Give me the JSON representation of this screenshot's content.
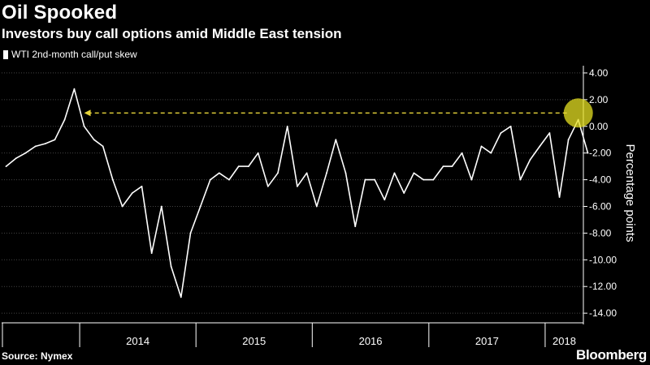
{
  "header": {
    "title": "Oil Spooked",
    "subtitle": "Investors buy call options amid Middle East tension"
  },
  "legend": {
    "label": "WTI 2nd-month call/put skew"
  },
  "footer": {
    "source": "Source: Nymex",
    "brand": "Bloomberg"
  },
  "colors": {
    "background": "#000000",
    "line": "#ffffff",
    "grid": "#444444",
    "highlight": "#e6e021",
    "arrow": "#e6d43a"
  },
  "chart_data": {
    "type": "line",
    "title": "Oil Spooked",
    "subtitle": "Investors buy call options amid Middle East tension",
    "xlabel": "",
    "ylabel": "Percentage points",
    "ylim": [
      -14.6,
      4.3
    ],
    "yticks": [
      4,
      2,
      0,
      -2,
      -4,
      -6,
      -8,
      -10,
      -12,
      -14
    ],
    "ytick_labels": [
      "4.00",
      "2.00",
      "0.00",
      "-2.00",
      "-4.00",
      "-6.00",
      "-8.00",
      "-10.00",
      "-12.00",
      "-14.00"
    ],
    "xlim": [
      "2013-05-01",
      "2018-05-01"
    ],
    "xticks": [
      "2014",
      "2015",
      "2016",
      "2017",
      "2018"
    ],
    "grid": true,
    "legend_position": "top-left",
    "series": [
      {
        "name": "WTI 2nd-month call/put skew",
        "x": [
          "2013-05",
          "2013-06",
          "2013-07",
          "2013-08",
          "2013-09",
          "2013-10",
          "2013-11",
          "2013-12",
          "2014-01",
          "2014-02",
          "2014-03",
          "2014-04",
          "2014-05",
          "2014-06",
          "2014-07",
          "2014-08",
          "2014-09",
          "2014-10",
          "2014-11",
          "2014-12",
          "2015-01",
          "2015-02",
          "2015-03",
          "2015-04",
          "2015-05",
          "2015-06",
          "2015-07",
          "2015-08",
          "2015-09",
          "2015-10",
          "2015-11",
          "2015-12",
          "2016-01",
          "2016-02",
          "2016-03",
          "2016-04",
          "2016-05",
          "2016-06",
          "2016-07",
          "2016-08",
          "2016-09",
          "2016-10",
          "2016-11",
          "2016-12",
          "2017-01",
          "2017-02",
          "2017-03",
          "2017-04",
          "2017-05",
          "2017-06",
          "2017-07",
          "2017-08",
          "2017-09",
          "2017-10",
          "2017-11",
          "2017-12",
          "2018-01",
          "2018-02",
          "2018-03",
          "2018-04",
          "2018-05"
        ],
        "y": [
          -3.0,
          -2.4,
          -2.0,
          -1.5,
          -1.3,
          -1.0,
          0.5,
          2.8,
          0.0,
          -1.0,
          -1.5,
          -4.0,
          -6.0,
          -5.0,
          -4.5,
          -9.5,
          -6.0,
          -10.5,
          -12.8,
          -8.0,
          -6.0,
          -4.0,
          -3.5,
          -4.0,
          -3.0,
          -3.0,
          -2.0,
          -4.5,
          -3.5,
          0.0,
          -4.5,
          -3.5,
          -6.0,
          -3.5,
          -1.0,
          -3.5,
          -7.5,
          -4.0,
          -4.0,
          -5.5,
          -3.5,
          -5.0,
          -3.5,
          -4.0,
          -4.0,
          -3.0,
          -3.0,
          -2.0,
          -4.0,
          -1.5,
          -2.0,
          -0.5,
          0.0,
          -4.0,
          -2.5,
          -1.5,
          -0.5,
          -5.3,
          -1.0,
          0.5,
          -2.0
        ]
      }
    ],
    "annotations": [
      {
        "type": "circle",
        "x": "2018-04",
        "y": 1.0
      },
      {
        "type": "dashed-arrow",
        "from": {
          "x": "2018-04",
          "y": 1.0
        },
        "to": {
          "x": "2014-01",
          "y": 1.0
        }
      }
    ]
  }
}
